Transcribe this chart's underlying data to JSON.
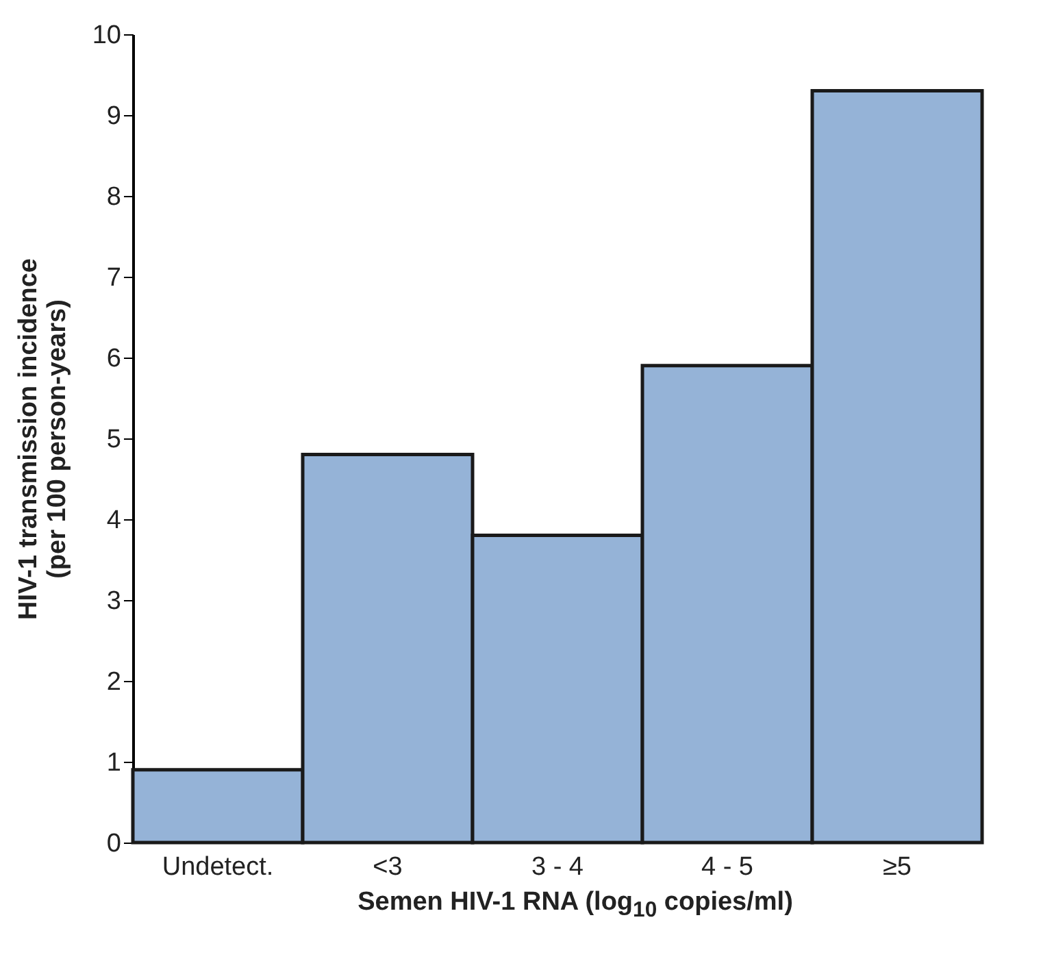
{
  "chart_data": {
    "type": "bar",
    "xlabel": "Semen HIV-1 RNA (log$_{10}$ copies/ml)",
    "ylabel": "HIV-1 transmission incidence (per 100 person-years)",
    "categories": [
      "Undetect.",
      "<3",
      "3 - 4",
      "4 - 5",
      "≥5"
    ],
    "values": [
      0.9,
      4.8,
      3.8,
      5.9,
      9.3
    ],
    "color": "#95b3d7",
    "ylim": [
      0,
      10
    ],
    "yticks": [
      0,
      1,
      2,
      3,
      4,
      5,
      6,
      7,
      8,
      9,
      10
    ],
    "grid": false
  }
}
